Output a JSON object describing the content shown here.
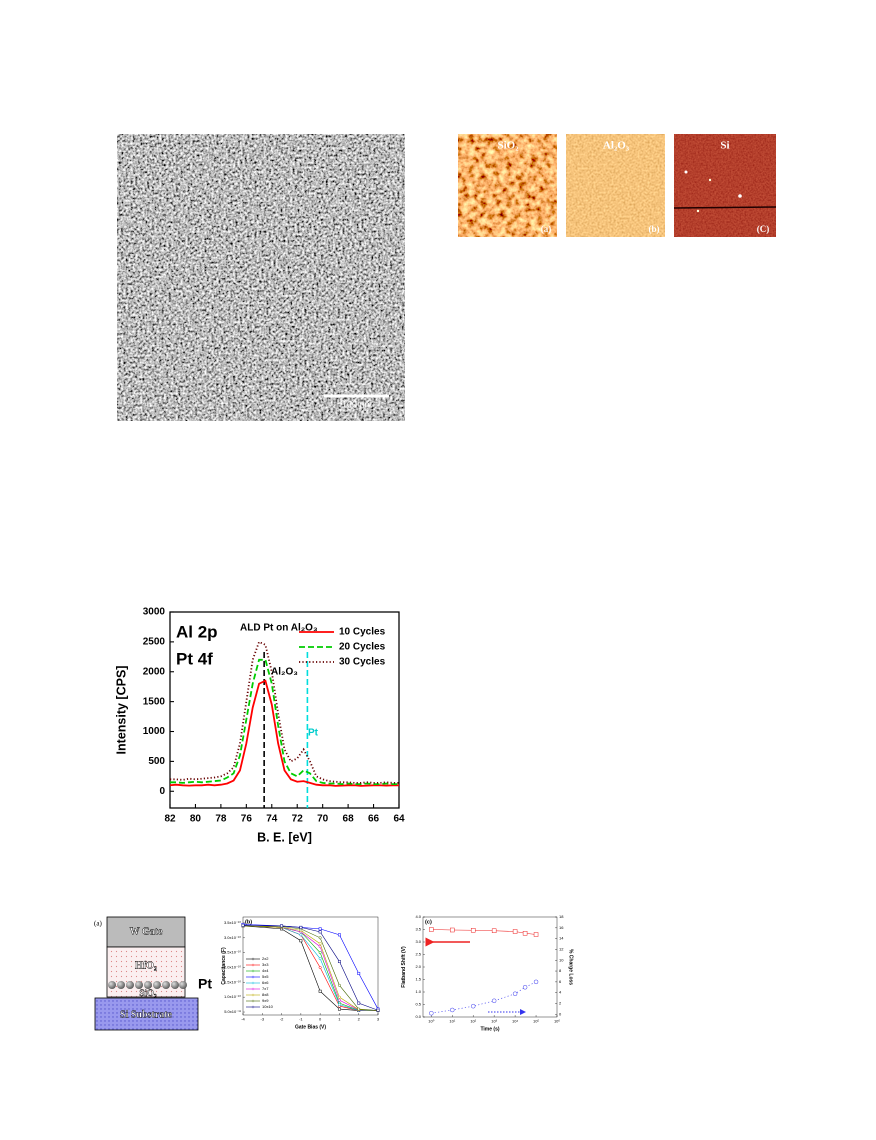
{
  "sem_image": {
    "scale_bar": "100 nm"
  },
  "afm_images": [
    {
      "label": "SiO₂",
      "panel": "(a)"
    },
    {
      "label": "Al₂O₃",
      "panel": "(b)"
    },
    {
      "label": "Si",
      "panel": "(C)"
    }
  ],
  "device_diagram": {
    "panel": "(a)",
    "layers": [
      "W Gate",
      "HfO₂",
      "Pt",
      "SiO₂",
      "Si Substrate"
    ]
  },
  "chart_data": [
    {
      "type": "line",
      "x": [
        82,
        81.5,
        81,
        80.5,
        80,
        79.5,
        79,
        78.5,
        78,
        77.5,
        77,
        76.5,
        76,
        75.5,
        75,
        74.5,
        74,
        73.5,
        73,
        72.5,
        72,
        71.5,
        71,
        70.5,
        70,
        69.5,
        69,
        68.5,
        68,
        67.5,
        67,
        66.5,
        66,
        65.5,
        65,
        64.5,
        64
      ],
      "xlim": [
        82,
        64
      ],
      "xticks": [
        82,
        80,
        78,
        76,
        74,
        72,
        70,
        68,
        66,
        64
      ],
      "ylim": [
        -280,
        3000
      ],
      "yticks": [
        0,
        500,
        1000,
        1500,
        2000,
        2500,
        3000
      ],
      "xlabel": "B. E. [eV]",
      "ylabel": "Intensity [CPS]",
      "legend": "upper right",
      "series": [
        {
          "name": "10 Cycles",
          "color": "#ff0000",
          "line_style": "solid",
          "values": [
            100,
            110,
            100,
            95,
            100,
            100,
            110,
            100,
            110,
            130,
            180,
            350,
            800,
            1400,
            1800,
            1850,
            1450,
            800,
            350,
            200,
            160,
            170,
            140,
            110,
            100,
            100,
            90,
            95,
            100,
            100,
            90,
            95,
            100,
            100,
            95,
            100,
            100
          ]
        },
        {
          "name": "20 Cycles",
          "color": "#00cc00",
          "line_style": "dashed",
          "values": [
            150,
            150,
            140,
            150,
            160,
            150,
            160,
            170,
            180,
            230,
            300,
            600,
            1200,
            1800,
            2200,
            2200,
            1800,
            1100,
            500,
            300,
            250,
            350,
            300,
            170,
            140,
            130,
            130,
            120,
            130,
            120,
            120,
            130,
            120,
            120,
            130,
            120,
            120
          ]
        },
        {
          "name": "30 Cycles",
          "color": "#660000",
          "line_style": "dotted",
          "values": [
            200,
            200,
            190,
            210,
            200,
            210,
            220,
            230,
            250,
            300,
            400,
            800,
            1500,
            2200,
            2500,
            2450,
            2000,
            1300,
            700,
            500,
            550,
            700,
            500,
            250,
            200,
            170,
            160,
            150,
            150,
            140,
            140,
            150,
            140,
            140,
            150,
            140,
            140
          ]
        }
      ],
      "reference_lines": [
        {
          "x": 74.6,
          "color": "#000000",
          "line_style": "dashed"
        },
        {
          "x": 71.2,
          "color": "#00dddd",
          "line_style": "dashed"
        }
      ],
      "annotations": [
        {
          "text": "Al 2p",
          "color": "#000000"
        },
        {
          "text": "Pt 4f",
          "color": "#000000"
        },
        {
          "text": "ALD Pt on Al₂O₃",
          "color": "#000000"
        },
        {
          "text": "Al₂O₃",
          "color": "#000000"
        },
        {
          "text": "Pt",
          "color": "#00cccc"
        }
      ]
    },
    {
      "type": "line",
      "title": "(b)",
      "x": [
        -4,
        -2,
        -1,
        0,
        1,
        2,
        3
      ],
      "xlim": [
        -4,
        3
      ],
      "xticks": [
        -4,
        -3,
        -2,
        -1,
        0,
        1,
        2,
        3
      ],
      "ylim": [
        4e-11,
        3.7e-10
      ],
      "yticks": [
        {
          "value": 5e-11,
          "label": "5.0x10⁻¹¹"
        },
        {
          "value": 1e-10,
          "label": "1.0x10⁻¹⁰"
        },
        {
          "value": 1.5e-10,
          "label": "1.5x10⁻¹⁰"
        },
        {
          "value": 2e-10,
          "label": "2.0x10⁻¹⁰"
        },
        {
          "value": 2.5e-10,
          "label": "2.5x10⁻¹⁰"
        },
        {
          "value": 3e-10,
          "label": "3.0x10⁻¹⁰"
        },
        {
          "value": 3.5e-10,
          "label": "3.5x10⁻¹⁰"
        }
      ],
      "xlabel": "Gate Bias (V)",
      "ylabel": "Capacitance (F)",
      "legend": "lower left",
      "series": [
        {
          "name": "2x2",
          "color": "#000000",
          "marker": "square",
          "values": [
            3.4e-10,
            3.3e-10,
            2.9e-10,
            1.2e-10,
            6e-11,
            5.5e-11,
            5.5e-11
          ]
        },
        {
          "name": "3x3",
          "color": "#ff0000",
          "marker": "circle",
          "values": [
            3.4e-10,
            3.35e-10,
            3.1e-10,
            2e-10,
            7e-11,
            5.5e-11,
            5.5e-11
          ]
        },
        {
          "name": "4x4",
          "color": "#00aa00",
          "marker": "circle",
          "values": [
            3.4e-10,
            3.35e-10,
            3.2e-10,
            2.5e-10,
            8e-11,
            5.6e-11,
            5.5e-11
          ]
        },
        {
          "name": "5x5",
          "color": "#0000ff",
          "marker": "square",
          "values": [
            3.45e-10,
            3.4e-10,
            3.35e-10,
            3.3e-10,
            3.1e-10,
            1.8e-10,
            6e-11
          ]
        },
        {
          "name": "6x6",
          "color": "#00bbdd",
          "marker": "circle",
          "values": [
            3.4e-10,
            3.35e-10,
            3.1e-10,
            2.3e-10,
            7.5e-11,
            5.5e-11,
            5.5e-11
          ]
        },
        {
          "name": "7x7",
          "color": "#dd00dd",
          "marker": "circle",
          "values": [
            3.4e-10,
            3.35e-10,
            3.2e-10,
            2.7e-10,
            9e-11,
            5.7e-11,
            5.5e-11
          ]
        },
        {
          "name": "8x8",
          "color": "#bbaa00",
          "marker": "circle",
          "values": [
            3.4e-10,
            3.35e-10,
            3.25e-10,
            2.8e-10,
            1e-10,
            5.8e-11,
            5.5e-11
          ]
        },
        {
          "name": "9x9",
          "color": "#446600",
          "marker": "circle",
          "values": [
            3.4e-10,
            3.38e-10,
            3.3e-10,
            3e-10,
            1.4e-10,
            6e-11,
            5.5e-11
          ]
        },
        {
          "name": "10x10",
          "color": "#000080",
          "marker": "square",
          "values": [
            3.42e-10,
            3.4e-10,
            3.35e-10,
            3.2e-10,
            2.2e-10,
            8e-11,
            5.6e-11
          ]
        }
      ]
    },
    {
      "type": "line",
      "title": "(c)",
      "x": [
        1,
        10,
        100,
        1000,
        10000,
        30000,
        100000
      ],
      "xlog": true,
      "xlim": [
        0.4,
        1000000
      ],
      "xticks": [
        {
          "value": 1,
          "label": "10⁰"
        },
        {
          "value": 10,
          "label": "10¹"
        },
        {
          "value": 100,
          "label": "10²"
        },
        {
          "value": 1000,
          "label": "10³"
        },
        {
          "value": 10000,
          "label": "10⁴"
        },
        {
          "value": 100000,
          "label": "10⁵"
        },
        {
          "value": 1000000,
          "label": "10⁶"
        }
      ],
      "ylim": [
        0,
        4
      ],
      "yticks": [
        {
          "value": 0,
          "label": "0.0"
        },
        0.5,
        {
          "value": 1,
          "label": "1.0"
        },
        1.5,
        {
          "value": 2,
          "label": "2.0"
        },
        2.5,
        {
          "value": 3,
          "label": "3.0"
        },
        3.5,
        {
          "value": 4,
          "label": "4.0"
        }
      ],
      "y2lim": [
        -0.5,
        18
      ],
      "y2ticks": [
        0,
        2,
        4,
        6,
        8,
        10,
        12,
        14,
        16,
        18
      ],
      "xlabel": "Time (s)",
      "ylabel": "Flatband Shift (V)",
      "y2label": "% Charge Loss",
      "series": [
        {
          "color": "#ee2222",
          "marker": "square",
          "line_style": "solid",
          "values": [
            3.5,
            3.48,
            3.47,
            3.45,
            3.42,
            3.35,
            3.3
          ]
        },
        {
          "color": "#3333ee",
          "marker": "circle",
          "line_style": "dotted",
          "axis": "y2",
          "values": [
            0.2,
            0.8,
            1.5,
            2.5,
            3.8,
            5,
            6
          ]
        }
      ]
    }
  ]
}
